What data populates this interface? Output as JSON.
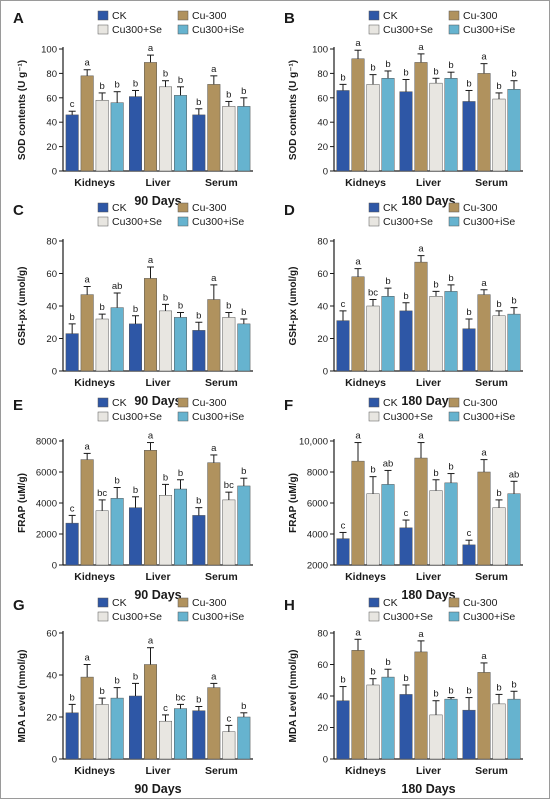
{
  "colors": {
    "CK": "#2e57a6",
    "Cu-300": "#b0925e",
    "Cu300+Se": "#e8e6e1",
    "Cu300+iSe": "#66b3cf",
    "axis": "#1a1a1a"
  },
  "chart_data": [
    {
      "type": "bar",
      "panel_label": "A",
      "title": "",
      "xlabel": "90 Days",
      "ylabel": "SOD contents (U g⁻¹)",
      "categories": [
        "Kidneys",
        "Liver",
        "Serum"
      ],
      "ylim": [
        0,
        100
      ],
      "yticks": [
        "0",
        "20",
        "40",
        "60",
        "80",
        "100"
      ],
      "legend": [
        "CK",
        "Cu-300",
        "Cu300+Se",
        "Cu300+iSe"
      ],
      "grid": false,
      "series": [
        {
          "name": "CK",
          "values": [
            46,
            61,
            46
          ],
          "errors": [
            3,
            5,
            5
          ],
          "letters": [
            "c",
            "b",
            "b"
          ]
        },
        {
          "name": "Cu-300",
          "values": [
            78,
            89,
            71
          ],
          "errors": [
            5,
            6,
            7
          ],
          "letters": [
            "a",
            "a",
            "a"
          ]
        },
        {
          "name": "Cu300+Se",
          "values": [
            58,
            69,
            53
          ],
          "errors": [
            6,
            5,
            4
          ],
          "letters": [
            "b",
            "b",
            "b"
          ]
        },
        {
          "name": "Cu300+iSe",
          "values": [
            56,
            62,
            53
          ],
          "errors": [
            9,
            7,
            7
          ],
          "letters": [
            "b",
            "b",
            "b"
          ]
        }
      ]
    },
    {
      "type": "bar",
      "panel_label": "B",
      "title": "",
      "xlabel": "180 Days",
      "ylabel": "SOD contents (U g⁻¹)",
      "categories": [
        "Kidneys",
        "Liver",
        "Serum"
      ],
      "ylim": [
        0,
        100
      ],
      "yticks": [
        "0",
        "20",
        "40",
        "60",
        "80",
        "100"
      ],
      "legend": [
        "CK",
        "Cu-300",
        "Cu300+Se",
        "Cu300+iSe"
      ],
      "grid": false,
      "series": [
        {
          "name": "CK",
          "values": [
            66,
            65,
            57
          ],
          "errors": [
            5,
            10,
            9
          ],
          "letters": [
            "b",
            "b",
            "b"
          ]
        },
        {
          "name": "Cu-300",
          "values": [
            92,
            89,
            80
          ],
          "errors": [
            7,
            7,
            8
          ],
          "letters": [
            "a",
            "a",
            "a"
          ]
        },
        {
          "name": "Cu300+Se",
          "values": [
            71,
            72,
            59
          ],
          "errors": [
            8,
            4,
            5
          ],
          "letters": [
            "b",
            "b",
            "b"
          ]
        },
        {
          "name": "Cu300+iSe",
          "values": [
            76,
            76,
            67
          ],
          "errors": [
            6,
            5,
            7
          ],
          "letters": [
            "b",
            "b",
            "b"
          ]
        }
      ]
    },
    {
      "type": "bar",
      "panel_label": "C",
      "title": "",
      "xlabel": "90 Days",
      "ylabel": "GSH-px (umol/g)",
      "categories": [
        "Kidneys",
        "Liver",
        "Serum"
      ],
      "ylim": [
        0,
        80
      ],
      "yticks": [
        "0",
        "20",
        "40",
        "60",
        "80"
      ],
      "legend": [
        "CK",
        "Cu-300",
        "Cu300+Se",
        "Cu300+iSe"
      ],
      "grid": false,
      "series": [
        {
          "name": "CK",
          "values": [
            23,
            29,
            25
          ],
          "errors": [
            6,
            5,
            5
          ],
          "letters": [
            "b",
            "b",
            "b"
          ]
        },
        {
          "name": "Cu-300",
          "values": [
            47,
            57,
            44
          ],
          "errors": [
            5,
            7,
            9
          ],
          "letters": [
            "a",
            "a",
            "a"
          ]
        },
        {
          "name": "Cu300+Se",
          "values": [
            32,
            37,
            33
          ],
          "errors": [
            3,
            4,
            3
          ],
          "letters": [
            "b",
            "b",
            "b"
          ]
        },
        {
          "name": "Cu300+iSe",
          "values": [
            39,
            33,
            29
          ],
          "errors": [
            9,
            3,
            3
          ],
          "letters": [
            "ab",
            "b",
            "b"
          ]
        }
      ]
    },
    {
      "type": "bar",
      "panel_label": "D",
      "title": "",
      "xlabel": "180 Days",
      "ylabel": "GSH-px (umol/g)",
      "categories": [
        "Kidneys",
        "Liver",
        "Serum"
      ],
      "ylim": [
        0,
        80
      ],
      "yticks": [
        "0",
        "20",
        "40",
        "60",
        "80"
      ],
      "legend": [
        "CK",
        "Cu-300",
        "Cu300+Se",
        "Cu300+iSe"
      ],
      "grid": false,
      "series": [
        {
          "name": "CK",
          "values": [
            31,
            37,
            26
          ],
          "errors": [
            6,
            5,
            6
          ],
          "letters": [
            "c",
            "b",
            "b"
          ]
        },
        {
          "name": "Cu-300",
          "values": [
            58,
            67,
            47
          ],
          "errors": [
            5,
            4,
            3
          ],
          "letters": [
            "a",
            "a",
            "a"
          ]
        },
        {
          "name": "Cu300+Se",
          "values": [
            40,
            46,
            34
          ],
          "errors": [
            4,
            3,
            3
          ],
          "letters": [
            "bc",
            "b",
            "b"
          ]
        },
        {
          "name": "Cu300+iSe",
          "values": [
            46,
            49,
            35
          ],
          "errors": [
            5,
            4,
            4
          ],
          "letters": [
            "b",
            "b",
            "b"
          ]
        }
      ]
    },
    {
      "type": "bar",
      "panel_label": "E",
      "title": "",
      "xlabel": "90 Days",
      "ylabel": "FRAP (uM/g)",
      "categories": [
        "Kidneys",
        "Liver",
        "Serum"
      ],
      "ylim": [
        0,
        8000
      ],
      "yticks": [
        "0",
        "2000",
        "4000",
        "6000",
        "8000"
      ],
      "legend": [
        "CK",
        "Cu-300",
        "Cu300+Se",
        "Cu300+iSe"
      ],
      "grid": false,
      "series": [
        {
          "name": "CK",
          "values": [
            2700,
            3700,
            3200
          ],
          "errors": [
            500,
            700,
            500
          ],
          "letters": [
            "c",
            "b",
            "b"
          ]
        },
        {
          "name": "Cu-300",
          "values": [
            6800,
            7400,
            6600
          ],
          "errors": [
            400,
            500,
            500
          ],
          "letters": [
            "a",
            "a",
            "a"
          ]
        },
        {
          "name": "Cu300+Se",
          "values": [
            3500,
            4500,
            4200
          ],
          "errors": [
            700,
            700,
            500
          ],
          "letters": [
            "bc",
            "b",
            "bc"
          ]
        },
        {
          "name": "Cu300+iSe",
          "values": [
            4300,
            4900,
            5100
          ],
          "errors": [
            700,
            600,
            500
          ],
          "letters": [
            "b",
            "b",
            "b"
          ]
        }
      ]
    },
    {
      "type": "bar",
      "panel_label": "F",
      "title": "",
      "xlabel": "180 Days",
      "ylabel": "FRAP (uM/g)",
      "categories": [
        "Kidneys",
        "Liver",
        "Serum"
      ],
      "ylim": [
        2000,
        10000
      ],
      "yticks": [
        "2000",
        "4000",
        "6000",
        "8000",
        "10,000"
      ],
      "legend": [
        "CK",
        "Cu-300",
        "Cu300+Se",
        "Cu300+iSe"
      ],
      "grid": false,
      "series": [
        {
          "name": "CK",
          "values": [
            3700,
            4400,
            3300
          ],
          "errors": [
            400,
            500,
            300
          ],
          "letters": [
            "c",
            "c",
            "c"
          ]
        },
        {
          "name": "Cu-300",
          "values": [
            8700,
            8900,
            8000
          ],
          "errors": [
            1200,
            1000,
            800
          ],
          "letters": [
            "a",
            "a",
            "a"
          ]
        },
        {
          "name": "Cu300+Se",
          "values": [
            6600,
            6800,
            5700
          ],
          "errors": [
            1100,
            700,
            500
          ],
          "letters": [
            "b",
            "b",
            "b"
          ]
        },
        {
          "name": "Cu300+iSe",
          "values": [
            7200,
            7300,
            6600
          ],
          "errors": [
            900,
            600,
            800
          ],
          "letters": [
            "ab",
            "b",
            "ab"
          ]
        }
      ]
    },
    {
      "type": "bar",
      "panel_label": "G",
      "title": "",
      "xlabel": "90 Days",
      "ylabel": "MDA Level (nmol/g)",
      "categories": [
        "Kidneys",
        "Liver",
        "Serum"
      ],
      "ylim": [
        0,
        60
      ],
      "yticks": [
        "0",
        "20",
        "40",
        "60"
      ],
      "legend": [
        "CK",
        "Cu-300",
        "Cu300+Se",
        "Cu300+iSe"
      ],
      "grid": false,
      "series": [
        {
          "name": "CK",
          "values": [
            22,
            30,
            23
          ],
          "errors": [
            4,
            6,
            2
          ],
          "letters": [
            "b",
            "b",
            "b"
          ]
        },
        {
          "name": "Cu-300",
          "values": [
            39,
            45,
            34
          ],
          "errors": [
            6,
            8,
            2
          ],
          "letters": [
            "a",
            "a",
            "a"
          ]
        },
        {
          "name": "Cu300+Se",
          "values": [
            26,
            18,
            13
          ],
          "errors": [
            3,
            3,
            3
          ],
          "letters": [
            "b",
            "c",
            "c"
          ]
        },
        {
          "name": "Cu300+iSe",
          "values": [
            29,
            24,
            20
          ],
          "errors": [
            5,
            2,
            2
          ],
          "letters": [
            "b",
            "bc",
            "b"
          ]
        }
      ]
    },
    {
      "type": "bar",
      "panel_label": "H",
      "title": "",
      "xlabel": "180 Days",
      "ylabel": "MDA Level (nmol/g)",
      "categories": [
        "Kidneys",
        "Liver",
        "Serum"
      ],
      "ylim": [
        0,
        80
      ],
      "yticks": [
        "0",
        "20",
        "40",
        "60",
        "80"
      ],
      "legend": [
        "CK",
        "Cu-300",
        "Cu300+Se",
        "Cu300+iSe"
      ],
      "grid": false,
      "series": [
        {
          "name": "CK",
          "values": [
            37,
            41,
            31
          ],
          "errors": [
            9,
            6,
            8
          ],
          "letters": [
            "b",
            "b",
            "b"
          ]
        },
        {
          "name": "Cu-300",
          "values": [
            69,
            68,
            55
          ],
          "errors": [
            7,
            7,
            6
          ],
          "letters": [
            "a",
            "a",
            "a"
          ]
        },
        {
          "name": "Cu300+Se",
          "values": [
            47,
            28,
            35
          ],
          "errors": [
            4,
            9,
            6
          ],
          "letters": [
            "b",
            "b",
            "b"
          ]
        },
        {
          "name": "Cu300+iSe",
          "values": [
            52,
            38,
            38
          ],
          "errors": [
            5,
            1,
            5
          ],
          "letters": [
            "b",
            "b",
            "b"
          ]
        }
      ]
    }
  ]
}
